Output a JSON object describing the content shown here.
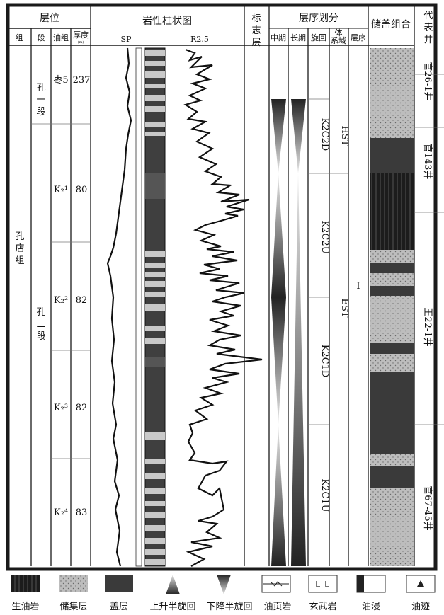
{
  "headers": {
    "strata": "层位",
    "group": "组",
    "member": "段",
    "oil_group": "油组",
    "thickness": "厚度",
    "thickness_unit": "(m)",
    "lithology_column": "岩性柱状图",
    "sp": "SP",
    "r25": "R2.5",
    "marker_bed": "标志层",
    "sequence_division": "层序划分",
    "medium_term": "中期",
    "long_term": "长期",
    "cycle": "旋回",
    "system_tract": "体系域",
    "sequence": "层序",
    "reservoir_seal": "储盖组合",
    "representative_well": "代表井"
  },
  "formation": "孔店组",
  "members": [
    "孔一段",
    "孔二段"
  ],
  "oil_groups": [
    {
      "label": "枣5",
      "thickness": "237"
    },
    {
      "label": "K₂¹",
      "thickness": "80"
    },
    {
      "label": "K₂²",
      "thickness": "82"
    },
    {
      "label": "K₂³",
      "thickness": "82"
    },
    {
      "label": "K₂⁴",
      "thickness": "83"
    }
  ],
  "cycles": [
    "K2C2D",
    "K2C2U",
    "K2C1D",
    "K2C1U"
  ],
  "system_tracts": [
    "HST",
    "EST"
  ],
  "sequence_label": "I",
  "wells": [
    "官26-1井",
    "官143井",
    "王22-1井",
    "官67-45井"
  ],
  "legend": [
    {
      "icon": "source-rock-icon",
      "label": "生油岩"
    },
    {
      "icon": "reservoir-icon",
      "label": "储集层"
    },
    {
      "icon": "cap-rock-icon",
      "label": "盖层"
    },
    {
      "icon": "rising-half-cycle-icon",
      "label": "上升半旋回"
    },
    {
      "icon": "falling-half-cycle-icon",
      "label": "下降半旋回"
    },
    {
      "icon": "oil-shale-icon",
      "label": "油页岩"
    },
    {
      "icon": "basalt-icon",
      "label": "玄武岩"
    },
    {
      "icon": "oil-immersion-icon",
      "label": "油浸"
    },
    {
      "icon": "oil-trace-icon",
      "label": "油迹"
    }
  ],
  "colors": {
    "frame": "#1a1a1a",
    "dark_fill": "#3a3a3a",
    "reservoir_fill": "#b8b8b8",
    "source_fill": "#222222",
    "paper": "#ffffff"
  }
}
